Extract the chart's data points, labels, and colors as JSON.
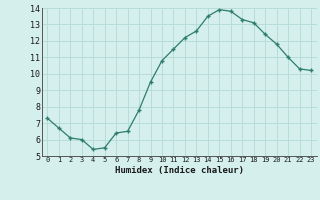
{
  "x": [
    0,
    1,
    2,
    3,
    4,
    5,
    6,
    7,
    8,
    9,
    10,
    11,
    12,
    13,
    14,
    15,
    16,
    17,
    18,
    19,
    20,
    21,
    22,
    23
  ],
  "y": [
    7.3,
    6.7,
    6.1,
    6.0,
    5.4,
    5.5,
    6.4,
    6.5,
    7.8,
    9.5,
    10.8,
    11.5,
    12.2,
    12.6,
    13.5,
    13.9,
    13.8,
    13.3,
    13.1,
    12.4,
    11.8,
    11.0,
    10.3,
    10.2
  ],
  "line_color": "#2e7d6e",
  "marker": "P",
  "marker_size": 2.5,
  "background_color": "#d4efec",
  "grid_color": "#b8dcd8",
  "xlabel": "Humidex (Indice chaleur)",
  "ylim": [
    5,
    14
  ],
  "xlim": [
    -0.5,
    23.5
  ],
  "yticks": [
    5,
    6,
    7,
    8,
    9,
    10,
    11,
    12,
    13,
    14
  ],
  "xticks": [
    0,
    1,
    2,
    3,
    4,
    5,
    6,
    7,
    8,
    9,
    10,
    11,
    12,
    13,
    14,
    15,
    16,
    17,
    18,
    19,
    20,
    21,
    22,
    23
  ]
}
